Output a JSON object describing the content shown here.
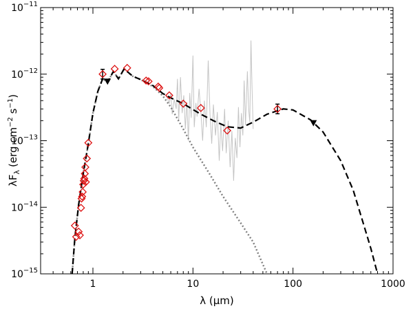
{
  "chart_data": {
    "type": "scatter",
    "title": "",
    "xlabel": "λ (μm)",
    "ylabel_main": "λF",
    "ylabel_sub": "λ",
    "ylabel_units_prefix": "(erg cm",
    "ylabel_units_exp1": "−2",
    "ylabel_units_mid": " s",
    "ylabel_units_exp2": "−1",
    "ylabel_units_suffix": ")",
    "xscale": "log",
    "yscale": "log",
    "xlim": [
      0.3,
      1000
    ],
    "ylim": [
      1e-15,
      1e-11
    ],
    "x_ticks": [
      {
        "value": 1,
        "label": "1"
      },
      {
        "value": 10,
        "label": "10"
      },
      {
        "value": 100,
        "label": "100"
      },
      {
        "value": 1000,
        "label": "1000"
      }
    ],
    "y_ticks": [
      {
        "value": 1e-15,
        "base": "10",
        "exp": "−15"
      },
      {
        "value": 1e-14,
        "base": "10",
        "exp": "−14"
      },
      {
        "value": 1e-13,
        "base": "10",
        "exp": "−13"
      },
      {
        "value": 1e-12,
        "base": "10",
        "exp": "−12"
      },
      {
        "value": 1e-11,
        "base": "10",
        "exp": "−11"
      }
    ],
    "colors": {
      "photometry": "#dd1111",
      "spectrum": "#c4c4c4",
      "model": "#000000",
      "photosphere": "#808080"
    },
    "series": [
      {
        "name": "photometry",
        "marker": "diamond",
        "points": [
          [
            0.66,
            5.3e-15
          ],
          [
            0.68,
            3.6e-15
          ],
          [
            0.72,
            4.3e-15
          ],
          [
            0.74,
            3.8e-15
          ],
          [
            0.76,
            9.8e-15
          ],
          [
            0.77,
            1.35e-14
          ],
          [
            0.78,
            1.45e-14
          ],
          [
            0.79,
            1.7e-14
          ],
          [
            0.8,
            2.2e-14
          ],
          [
            0.81,
            2.5e-14
          ],
          [
            0.82,
            2.7e-14
          ],
          [
            0.83,
            3.2e-14
          ],
          [
            0.84,
            4e-14
          ],
          [
            0.85,
            2.4e-14
          ],
          [
            0.87,
            5.4e-14
          ],
          [
            0.9,
            9.3e-14
          ],
          [
            1.25,
            1e-12
          ],
          [
            1.65,
            1.2e-12
          ],
          [
            2.2,
            1.24e-12
          ],
          [
            3.4,
            8e-13
          ],
          [
            3.6,
            7.8e-13
          ],
          [
            4.5,
            6.5e-13
          ],
          [
            4.6,
            6.2e-13
          ],
          [
            5.8,
            4.8e-13
          ],
          [
            8.0,
            3.6e-13
          ],
          [
            12,
            3.1e-13
          ],
          [
            22,
            1.42e-13
          ],
          [
            70,
            3e-13
          ]
        ]
      },
      {
        "name": "upper limits",
        "marker": "triangle-down",
        "points": [
          [
            1.4,
            7.8e-13
          ],
          [
            160,
            1.85e-13
          ]
        ]
      },
      {
        "name": "IRS spectrum",
        "style": "thin-gray",
        "points": [
          [
            5.2,
            5e-13
          ],
          [
            5.5,
            4.5e-13
          ],
          [
            5.8,
            3.6e-13
          ],
          [
            6.0,
            5.2e-13
          ],
          [
            6.2,
            2.5e-13
          ],
          [
            6.5,
            4.2e-13
          ],
          [
            6.8,
            3e-13
          ],
          [
            7.0,
            8.5e-13
          ],
          [
            7.2,
            2e-13
          ],
          [
            7.5,
            9e-13
          ],
          [
            7.8,
            2.6e-13
          ],
          [
            8.1,
            4.8e-13
          ],
          [
            8.4,
            1.5e-13
          ],
          [
            8.7,
            3.8e-13
          ],
          [
            9.0,
            1e-13
          ],
          [
            9.3,
            5.2e-13
          ],
          [
            9.6,
            2.2e-13
          ],
          [
            10.0,
            1.9e-12
          ],
          [
            10.3,
            1.6e-13
          ],
          [
            10.7,
            3.7e-13
          ],
          [
            11.0,
            2.3e-13
          ],
          [
            11.5,
            6e-13
          ],
          [
            12.0,
            2.7e-13
          ],
          [
            12.5,
            1e-13
          ],
          [
            13.0,
            4e-13
          ],
          [
            13.6,
            1.6e-13
          ],
          [
            14.2,
            1.6e-12
          ],
          [
            14.8,
            2.5e-13
          ],
          [
            15.4,
            9e-14
          ],
          [
            16.0,
            3.5e-13
          ],
          [
            16.8,
            1.2e-13
          ],
          [
            17.5,
            2.7e-13
          ],
          [
            18.3,
            5e-14
          ],
          [
            19.0,
            1.8e-13
          ],
          [
            19.8,
            7e-14
          ],
          [
            20.7,
            3e-13
          ],
          [
            21.5,
            6.5e-14
          ],
          [
            22.5,
            2e-13
          ],
          [
            23.5,
            4e-14
          ],
          [
            24.5,
            1.4e-13
          ],
          [
            25.5,
            2.5e-14
          ],
          [
            26.5,
            1.1e-13
          ],
          [
            27.5,
            5.5e-14
          ],
          [
            28.5,
            3.2e-13
          ],
          [
            29.5,
            8e-14
          ],
          [
            30.5,
            2.6e-13
          ],
          [
            31.5,
            1.2e-13
          ],
          [
            32.5,
            8e-13
          ],
          [
            33.5,
            1.7e-13
          ],
          [
            35.0,
            1.1e-12
          ],
          [
            36.0,
            3e-13
          ],
          [
            37.0,
            1.9e-13
          ],
          [
            38.0,
            3.2e-12
          ],
          [
            39.0,
            6e-13
          ],
          [
            40.0,
            1.5e-13
          ]
        ]
      },
      {
        "name": "photosphere model",
        "style": "dotted-gray",
        "points": [
          [
            0.62,
            1e-15
          ],
          [
            0.66,
            3.5e-15
          ],
          [
            0.72,
            1.1e-14
          ],
          [
            0.8,
            3.2e-14
          ],
          [
            0.9,
            9e-14
          ],
          [
            1.0,
            2.6e-13
          ],
          [
            1.12,
            5.5e-13
          ],
          [
            1.25,
            8.5e-13
          ],
          [
            1.4,
            7.5e-13
          ],
          [
            1.6,
            1.1e-12
          ],
          [
            1.8,
            8.5e-13
          ],
          [
            2.05,
            1.2e-12
          ],
          [
            2.5,
            9.3e-13
          ],
          [
            3.0,
            8.3e-13
          ],
          [
            4.0,
            6.5e-13
          ],
          [
            5.0,
            4.7e-13
          ],
          [
            6.0,
            3.2e-13
          ],
          [
            8.0,
            1.5e-13
          ],
          [
            10,
            8e-14
          ],
          [
            15,
            3e-14
          ],
          [
            20,
            1.45e-14
          ],
          [
            30,
            5.8e-15
          ],
          [
            40,
            3e-15
          ],
          [
            55,
            1e-15
          ]
        ]
      },
      {
        "name": "total model",
        "style": "dashed-black",
        "points": [
          [
            0.62,
            1e-15
          ],
          [
            0.66,
            3.5e-15
          ],
          [
            0.72,
            1.1e-14
          ],
          [
            0.8,
            3.2e-14
          ],
          [
            0.9,
            9e-14
          ],
          [
            1.0,
            2.6e-13
          ],
          [
            1.12,
            5.5e-13
          ],
          [
            1.25,
            8.5e-13
          ],
          [
            1.4,
            7.5e-13
          ],
          [
            1.6,
            1.1e-12
          ],
          [
            1.8,
            8.5e-13
          ],
          [
            2.05,
            1.2e-12
          ],
          [
            2.5,
            9.3e-13
          ],
          [
            3.0,
            8.3e-13
          ],
          [
            4.0,
            6.7e-13
          ],
          [
            5.0,
            5.1e-13
          ],
          [
            6.0,
            4.4e-13
          ],
          [
            8.0,
            3.6e-13
          ],
          [
            12,
            2.5e-13
          ],
          [
            16,
            2e-13
          ],
          [
            22,
            1.62e-13
          ],
          [
            30,
            1.55e-13
          ],
          [
            40,
            1.9e-13
          ],
          [
            55,
            2.5e-13
          ],
          [
            80,
            3e-13
          ],
          [
            100,
            2.9e-13
          ],
          [
            150,
            2.05e-13
          ],
          [
            200,
            1.35e-13
          ],
          [
            300,
            5e-14
          ],
          [
            400,
            1.8e-14
          ],
          [
            500,
            6e-15
          ],
          [
            600,
            2.4e-15
          ],
          [
            700,
            1e-15
          ]
        ]
      }
    ]
  }
}
